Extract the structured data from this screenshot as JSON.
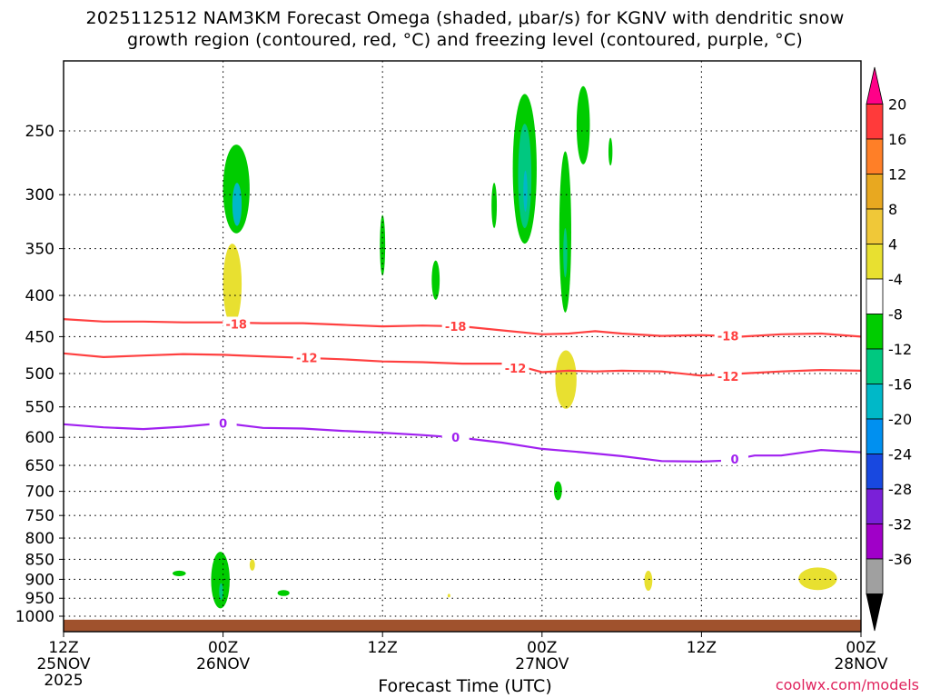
{
  "title": {
    "line1": "2025112512 NAM3KM Forecast Omega (shaded, μbar/s) for KGNV with dendritic snow",
    "line2": "growth region (contoured, red, °C) and freezing level (contoured, purple, °C)"
  },
  "credit": "coolwx.com/models",
  "chart_data": {
    "type": "heatmap",
    "xlabel": "Forecast Time (UTC)",
    "x_range_hours": [
      0,
      60
    ],
    "x_ticks": [
      {
        "h": 0,
        "l1": "12Z",
        "l2": "25NOV",
        "l3": "2025"
      },
      {
        "h": 12,
        "l1": "00Z",
        "l2": "26NOV",
        "l3": ""
      },
      {
        "h": 24,
        "l1": "12Z",
        "l2": "",
        "l3": ""
      },
      {
        "h": 36,
        "l1": "00Z",
        "l2": "27NOV",
        "l3": ""
      },
      {
        "h": 48,
        "l1": "12Z",
        "l2": "",
        "l3": ""
      },
      {
        "h": 60,
        "l1": "00Z",
        "l2": "28NOV",
        "l3": ""
      }
    ],
    "y_ticks": [
      250,
      300,
      350,
      400,
      450,
      500,
      550,
      600,
      650,
      700,
      750,
      800,
      850,
      900,
      950,
      1000
    ],
    "y_range_hpa": [
      200,
      1030
    ],
    "ground_hpa": 1010,
    "grid": true,
    "colorbar": {
      "labels": [
        "20",
        "16",
        "12",
        "8",
        "4",
        "-4",
        "-8",
        "-12",
        "-16",
        "-20",
        "-24",
        "-28",
        "-32",
        "-36"
      ],
      "colors": [
        "#ff0088",
        "#ff3a3a",
        "#ff7f27",
        "#e8a820",
        "#f0c838",
        "#e8e030",
        "#ffffff",
        "#00cc00",
        "#00c880",
        "#00b8c8",
        "#0090f0",
        "#1848e0",
        "#7a20d8",
        "#a000c8",
        "#a0a0a0",
        "#000000"
      ]
    },
    "contours": [
      {
        "level": -18,
        "color": "#ff4040",
        "x": [
          0,
          3,
          6,
          9,
          12,
          15,
          18,
          21,
          24,
          27,
          30,
          33,
          36,
          38,
          40,
          42,
          45,
          48,
          51,
          54,
          57,
          60
        ],
        "y": [
          428,
          431,
          431,
          432,
          432,
          433,
          433,
          435,
          437,
          436,
          437,
          442,
          447,
          446,
          443,
          446,
          449,
          448,
          450,
          447,
          446,
          450
        ],
        "labels": [
          {
            "x": 13,
            "y": 434
          },
          {
            "x": 29.5,
            "y": 437
          },
          {
            "x": 50,
            "y": 449
          }
        ]
      },
      {
        "level": -12,
        "color": "#ff4040",
        "x": [
          0,
          3,
          6,
          9,
          12,
          15,
          18,
          21,
          24,
          27,
          30,
          33,
          35,
          36,
          38,
          40,
          42,
          45,
          48,
          51,
          54,
          57,
          60
        ],
        "y": [
          472,
          477,
          475,
          473,
          474,
          476,
          478,
          480,
          483,
          484,
          486,
          486,
          493,
          498,
          496,
          497,
          496,
          497,
          503,
          500,
          497,
          495,
          496
        ],
        "labels": [
          {
            "x": 18.3,
            "y": 478
          },
          {
            "x": 34,
            "y": 492
          },
          {
            "x": 50,
            "y": 504
          }
        ]
      },
      {
        "level": 0,
        "color": "#a020f0",
        "x": [
          0,
          3,
          6,
          9,
          12,
          15,
          18,
          21,
          24,
          27,
          30,
          33,
          36,
          39,
          42,
          45,
          48,
          50,
          52,
          54,
          57,
          60
        ],
        "y": [
          578,
          583,
          586,
          582,
          576,
          584,
          585,
          589,
          592,
          596,
          601,
          609,
          620,
          626,
          633,
          642,
          643,
          641,
          632,
          632,
          622,
          626
        ],
        "labels": [
          {
            "x": 12,
            "y": 576
          },
          {
            "x": 29.5,
            "y": 600
          },
          {
            "x": 50.5,
            "y": 638
          }
        ]
      }
    ],
    "shaded_regions": [
      {
        "value": -8,
        "x": [
          12.0,
          14.0
        ],
        "y": [
          260,
          335
        ]
      },
      {
        "value": -16,
        "x": [
          12.7,
          13.4
        ],
        "y": [
          290,
          328
        ]
      },
      {
        "value": 4,
        "x": [
          12.0,
          13.4
        ],
        "y": [
          345,
          435
        ]
      },
      {
        "value": -8,
        "x": [
          23.8,
          24.2
        ],
        "y": [
          318,
          378
        ]
      },
      {
        "value": -8,
        "x": [
          27.7,
          28.3
        ],
        "y": [
          362,
          405
        ]
      },
      {
        "value": -8,
        "x": [
          32.2,
          32.6
        ],
        "y": [
          290,
          330
        ]
      },
      {
        "value": -8,
        "x": [
          33.8,
          35.6
        ],
        "y": [
          225,
          345
        ]
      },
      {
        "value": -12,
        "x": [
          34.2,
          35.2
        ],
        "y": [
          245,
          330
        ]
      },
      {
        "value": -16,
        "x": [
          34.6,
          34.9
        ],
        "y": [
          280,
          315
        ]
      },
      {
        "value": -8,
        "x": [
          37.3,
          38.2
        ],
        "y": [
          265,
          420
        ]
      },
      {
        "value": -12,
        "x": [
          37.6,
          37.9
        ],
        "y": [
          330,
          380
        ]
      },
      {
        "value": 4,
        "x": [
          37.0,
          38.6
        ],
        "y": [
          468,
          553
        ]
      },
      {
        "value": -8,
        "x": [
          38.6,
          39.6
        ],
        "y": [
          220,
          275
        ]
      },
      {
        "value": -8,
        "x": [
          41.0,
          41.3
        ],
        "y": [
          255,
          276
        ]
      },
      {
        "value": -8,
        "x": [
          36.9,
          37.5
        ],
        "y": [
          680,
          718
        ]
      },
      {
        "value": -8,
        "x": [
          8.2,
          9.2
        ],
        "y": [
          878,
          892
        ]
      },
      {
        "value": -8,
        "x": [
          11.1,
          12.5
        ],
        "y": [
          832,
          978
        ]
      },
      {
        "value": -12,
        "x": [
          11.7,
          12.0
        ],
        "y": [
          910,
          955
        ]
      },
      {
        "value": 4,
        "x": [
          14.0,
          14.4
        ],
        "y": [
          850,
          878
        ]
      },
      {
        "value": -8,
        "x": [
          16.1,
          17.0
        ],
        "y": [
          928,
          944
        ]
      },
      {
        "value": 4,
        "x": [
          28.9,
          29.1
        ],
        "y": [
          938,
          948
        ]
      },
      {
        "value": 4,
        "x": [
          43.7,
          44.3
        ],
        "y": [
          878,
          930
        ]
      },
      {
        "value": 4,
        "x": [
          55.3,
          58.2
        ],
        "y": [
          870,
          928
        ]
      }
    ]
  }
}
